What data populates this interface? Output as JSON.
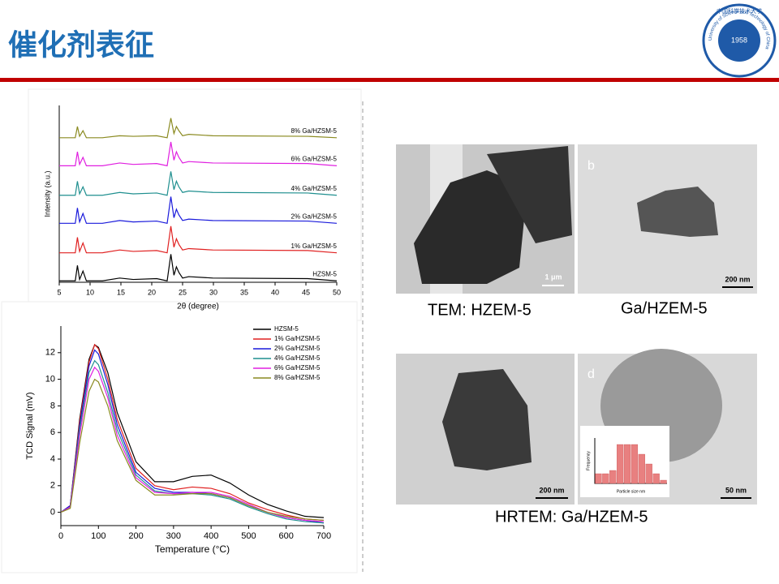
{
  "header": {
    "title": "催化剂表征",
    "logo": {
      "year": "1958",
      "name_cn": "中国科学技术大学",
      "name_en": "University of Science and Technology of China"
    }
  },
  "images": [
    {
      "scale": "1 μm"
    },
    {
      "letter": "b",
      "scale": "200 nm"
    },
    {
      "scale": "200 nm"
    },
    {
      "letter": "d",
      "scale": "50 nm"
    }
  ],
  "captions": [
    "TEM: HZEM-5",
    "Ga/HZEM-5",
    "HRTEM: Ga/HZEM-5"
  ],
  "chart_data": [
    {
      "type": "line",
      "labels": "inline",
      "xlabel": "2θ (degree)",
      "ylabel": "Intensity (a.u.)",
      "xlim": [
        5,
        50
      ],
      "xticks": [
        5,
        10,
        15,
        20,
        25,
        30,
        35,
        40,
        45,
        50
      ],
      "ylim": [
        0,
        6.3
      ],
      "x": [
        5,
        7.6,
        7.95,
        8.3,
        8.85,
        9.4,
        12,
        14.8,
        17,
        20.8,
        22.5,
        23.1,
        23.6,
        24,
        24.4,
        25,
        26,
        29.9,
        45.3,
        50
      ],
      "series": [
        {
          "name": "HZSM-5",
          "color": "#000000",
          "values": [
            0.05,
            0.05,
            0.6,
            0.1,
            0.4,
            0.05,
            0.05,
            0.15,
            0.1,
            0.13,
            0.05,
            1.0,
            0.25,
            0.55,
            0.35,
            0.15,
            0.2,
            0.15,
            0.13,
            0.05
          ]
        },
        {
          "name": "1% Ga/HZSM-5",
          "color": "#e02020",
          "values": [
            1.05,
            1.05,
            1.6,
            1.1,
            1.4,
            1.05,
            1.05,
            1.15,
            1.1,
            1.13,
            1.05,
            2.0,
            1.25,
            1.55,
            1.35,
            1.15,
            1.2,
            1.15,
            1.13,
            1.05
          ]
        },
        {
          "name": "2% Ga/HZSM-5",
          "color": "#1a1adb",
          "values": [
            2.1,
            2.1,
            2.65,
            2.15,
            2.45,
            2.1,
            2.1,
            2.2,
            2.15,
            2.18,
            2.1,
            3.05,
            2.3,
            2.6,
            2.4,
            2.2,
            2.25,
            2.2,
            2.18,
            2.1
          ]
        },
        {
          "name": "4% Ga/HZSM-5",
          "color": "#1f8f8f",
          "values": [
            3.1,
            3.1,
            3.6,
            3.15,
            3.4,
            3.1,
            3.1,
            3.2,
            3.15,
            3.18,
            3.1,
            3.95,
            3.3,
            3.6,
            3.4,
            3.2,
            3.25,
            3.2,
            3.18,
            3.1
          ]
        },
        {
          "name": "6% Ga/HZSM-5",
          "color": "#e020e0",
          "values": [
            4.15,
            4.15,
            4.65,
            4.2,
            4.45,
            4.15,
            4.15,
            4.25,
            4.2,
            4.23,
            4.15,
            5.0,
            4.35,
            4.65,
            4.45,
            4.25,
            4.3,
            4.25,
            4.23,
            4.15
          ]
        },
        {
          "name": "8% Ga/HZSM-5",
          "color": "#8a8a20",
          "values": [
            5.15,
            5.15,
            5.55,
            5.2,
            5.4,
            5.15,
            5.15,
            5.22,
            5.2,
            5.22,
            5.15,
            5.85,
            5.3,
            5.55,
            5.4,
            5.22,
            5.27,
            5.22,
            5.2,
            5.15
          ]
        }
      ]
    },
    {
      "type": "line",
      "legend": "top-right",
      "xlabel": "Temperature (°C)",
      "ylabel": "TCD Signal (mV)",
      "xlim": [
        0,
        700
      ],
      "xticks": [
        0,
        100,
        200,
        300,
        400,
        500,
        600,
        700
      ],
      "ylim": [
        -1,
        14
      ],
      "yticks": [
        0,
        2,
        4,
        6,
        8,
        10,
        12
      ],
      "x": [
        0,
        25,
        50,
        75,
        90,
        100,
        125,
        150,
        200,
        250,
        300,
        350,
        400,
        450,
        500,
        550,
        600,
        650,
        700
      ],
      "series": [
        {
          "name": "HZSM-5",
          "color": "#000000",
          "values": [
            0,
            0.5,
            7,
            11.5,
            12.6,
            12.4,
            10.5,
            7.5,
            3.8,
            2.3,
            2.3,
            2.7,
            2.8,
            2.2,
            1.3,
            0.6,
            0.1,
            -0.3,
            -0.4
          ]
        },
        {
          "name": "1% Ga/HZSM-5",
          "color": "#e02020",
          "values": [
            0,
            0.5,
            6.8,
            11.3,
            12.6,
            12.3,
            10,
            7,
            3.3,
            2.0,
            1.7,
            1.9,
            1.8,
            1.4,
            0.7,
            0.2,
            -0.2,
            -0.5,
            -0.6
          ]
        },
        {
          "name": "2% Ga/HZSM-5",
          "color": "#1a1adb",
          "values": [
            0,
            0.5,
            6.5,
            11,
            12.2,
            11.9,
            9.6,
            6.6,
            3.0,
            1.8,
            1.5,
            1.5,
            1.4,
            1.1,
            0.5,
            0,
            -0.4,
            -0.6,
            -0.8
          ]
        },
        {
          "name": "4% Ga/HZSM-5",
          "color": "#1f8f8f",
          "values": [
            0,
            0.4,
            6.2,
            10.5,
            11.4,
            11.1,
            9.0,
            6.2,
            2.8,
            1.6,
            1.4,
            1.4,
            1.3,
            1.0,
            0.4,
            -0.1,
            -0.5,
            -0.7,
            -0.8
          ]
        },
        {
          "name": "6% Ga/HZSM-5",
          "color": "#e020e0",
          "values": [
            0,
            0.4,
            5.8,
            10,
            10.9,
            10.6,
            8.6,
            5.8,
            2.6,
            1.5,
            1.4,
            1.5,
            1.5,
            1.2,
            0.6,
            0,
            -0.4,
            -0.6,
            -0.7
          ]
        },
        {
          "name": "8% Ga/HZSM-5",
          "color": "#8a8a20",
          "values": [
            0,
            0.3,
            5.2,
            9.1,
            10.0,
            9.8,
            8.0,
            5.4,
            2.4,
            1.3,
            1.3,
            1.4,
            1.4,
            1.1,
            0.5,
            0,
            -0.3,
            -0.5,
            -0.6
          ]
        }
      ]
    },
    {
      "type": "bar",
      "xlabel": "Particle size nm",
      "ylabel": "Frequency",
      "color": "#e88080",
      "ylim": [
        0,
        14
      ],
      "values": [
        3,
        3,
        4,
        12,
        12,
        12,
        9,
        6,
        3,
        1
      ]
    }
  ]
}
